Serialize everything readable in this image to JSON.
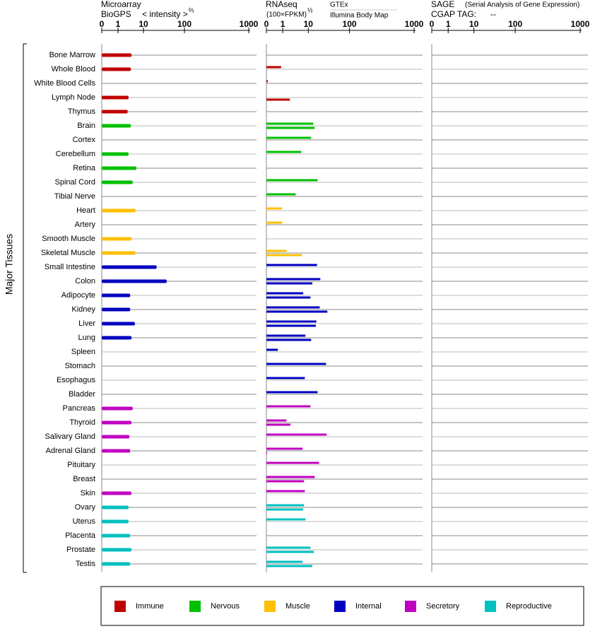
{
  "chart_data": {
    "type": "bar",
    "y_label": "Major Tissues",
    "legend": [
      {
        "name": "Immune",
        "color": "#c00000"
      },
      {
        "name": "Nervous",
        "color": "#00c000"
      },
      {
        "name": "Muscle",
        "color": "#ffc000"
      },
      {
        "name": "Internal",
        "color": "#0000c0"
      },
      {
        "name": "Secretory",
        "color": "#c000c0"
      },
      {
        "name": "Reproductive",
        "color": "#00c0c0"
      }
    ],
    "categories": [
      "Bone Marrow",
      "Whole Blood",
      "White Blood Cells",
      "Lymph Node",
      "Thymus",
      "Brain",
      "Cortex",
      "Cerebellum",
      "Retina",
      "Spinal Cord",
      "Tibial Nerve",
      "Heart",
      "Artery",
      "Smooth Muscle",
      "Skeletal Muscle",
      "Small Intestine",
      "Colon",
      "Adipocyte",
      "Kidney",
      "Liver",
      "Lung",
      "Spleen",
      "Stomach",
      "Esophagus",
      "Bladder",
      "Pancreas",
      "Thyroid",
      "Salivary Gland",
      "Adrenal Gland",
      "Pituitary",
      "Breast",
      "Skin",
      "Ovary",
      "Uterus",
      "Placenta",
      "Prostate",
      "Testis"
    ],
    "category_group": [
      0,
      0,
      0,
      0,
      0,
      1,
      1,
      1,
      1,
      1,
      1,
      2,
      2,
      2,
      2,
      3,
      3,
      3,
      3,
      3,
      3,
      3,
      3,
      3,
      3,
      4,
      4,
      4,
      4,
      4,
      4,
      4,
      5,
      5,
      5,
      5,
      5
    ],
    "panels": [
      {
        "title": "Microarray",
        "axis_label": "< intensity >",
        "exponent": "⅔",
        "xlim": [
          0,
          1000
        ],
        "xticks": [
          0,
          1,
          10,
          100,
          1000
        ],
        "series": [
          {
            "name": "BioGPS",
            "values": [
              3.4,
              3.2,
              null,
              2.6,
              2.4,
              3.2,
              null,
              2.6,
              5.3,
              3.8,
              null,
              4.9,
              null,
              3.4,
              4.9,
              21,
              37,
              3.0,
              3.0,
              4.6,
              3.4,
              null,
              null,
              null,
              null,
              3.8,
              3.4,
              2.8,
              3.0,
              null,
              null,
              3.4,
              2.6,
              2.6,
              3.0,
              3.4,
              3.0
            ]
          }
        ]
      },
      {
        "title": "RNAseq",
        "axis_label": "(100×FPKM)",
        "exponent": "½",
        "xlim": [
          0,
          1000
        ],
        "xticks": [
          0,
          1,
          10,
          100,
          1000
        ],
        "series": [
          {
            "name": "GTEx",
            "values": [
              null,
              0.9,
              0.09,
              null,
              null,
              13.2,
              11.7,
              5.3,
              null,
              16.8,
              3.2,
              0.96,
              0.96,
              null,
              1.4,
              16.3,
              19.6,
              6.3,
              18.9,
              15.7,
              7.7,
              0.7,
              27,
              7.3,
              16.8,
              11.3,
              1.4,
              28,
              6.0,
              18.2,
              14.3,
              7.3,
              6.8,
              7.7,
              null,
              11.3,
              6.0
            ]
          },
          {
            "name": "Illumina Body Map",
            "values": [
              null,
              null,
              null,
              1.9,
              null,
              14.3,
              null,
              null,
              null,
              null,
              null,
              0.04,
              null,
              null,
              5.6,
              null,
              12.5,
              11.3,
              29,
              15.2,
              11.7,
              null,
              null,
              null,
              null,
              null,
              2.0,
              null,
              0.04,
              null,
              6.8,
              null,
              6.3,
              null,
              null,
              13.7,
              12.5
            ]
          }
        ]
      },
      {
        "title": "SAGE",
        "subtitle": "(Serial Analysis of Gene Expression)",
        "tag_label": "CGAP TAG:",
        "tag": "--",
        "xlim": [
          0,
          1000
        ],
        "xticks": [
          0,
          1,
          10,
          100,
          1000
        ],
        "series": []
      }
    ]
  }
}
